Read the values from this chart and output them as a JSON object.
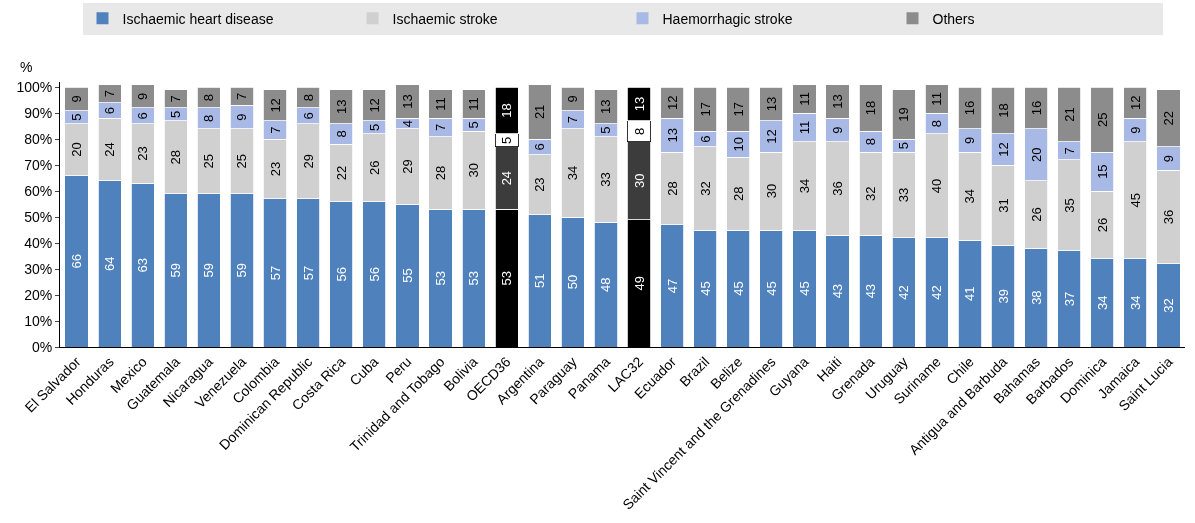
{
  "chart_data": {
    "type": "bar",
    "stacked": true,
    "ylabel": "%",
    "data_labels": true,
    "legend": "top",
    "grid": false,
    "categories": [
      "El Salvador",
      "Honduras",
      "Mexico",
      "Guatemala",
      "Nicaragua",
      "Venezuela",
      "Colombia",
      "Dominican Republic",
      "Costa Rica",
      "Cuba",
      "Peru",
      "Trinidad and Tobago",
      "Bolivia",
      "OECD36",
      "Argentina",
      "Paraguay",
      "Panama",
      "LAC32",
      "Ecuador",
      "Brazil",
      "Belize",
      "Saint Vincent and the Grenadines",
      "Guyana",
      "Haiti",
      "Grenada",
      "Uruguay",
      "Suriname",
      "Chile",
      "Antigua and Barbuda",
      "Bahamas",
      "Barbados",
      "Dominica",
      "Jamaica",
      "Saint Lucia"
    ],
    "ylim": [
      0,
      102
    ],
    "yticks": [
      {
        "value": 0,
        "label": "0%"
      },
      {
        "value": 10,
        "label": "10%"
      },
      {
        "value": 20,
        "label": "20%"
      },
      {
        "value": 30,
        "label": "30%"
      },
      {
        "value": 40,
        "label": "40%"
      },
      {
        "value": 50,
        "label": "50%"
      },
      {
        "value": 60,
        "label": "60%"
      },
      {
        "value": 70,
        "label": "70%"
      },
      {
        "value": 80,
        "label": "80%"
      },
      {
        "value": 90,
        "label": "90%"
      },
      {
        "value": 100,
        "label": "100%"
      }
    ],
    "series": [
      {
        "name": "Ischaemic heart disease",
        "color": "#4f81bd",
        "colors": [
          "#4f81bd",
          "#4f81bd",
          "#4f81bd",
          "#4f81bd",
          "#4f81bd",
          "#4f81bd",
          "#4f81bd",
          "#4f81bd",
          "#4f81bd",
          "#4f81bd",
          "#4f81bd",
          "#4f81bd",
          "#4f81bd",
          "#000000",
          "#4f81bd",
          "#4f81bd",
          "#4f81bd",
          "#000000",
          "#4f81bd",
          "#4f81bd",
          "#4f81bd",
          "#4f81bd",
          "#4f81bd",
          "#4f81bd",
          "#4f81bd",
          "#4f81bd",
          "#4f81bd",
          "#4f81bd",
          "#4f81bd",
          "#4f81bd",
          "#4f81bd",
          "#4f81bd",
          "#4f81bd",
          "#4f81bd"
        ],
        "values": [
          66,
          64,
          63,
          59,
          59,
          59,
          57,
          57,
          56,
          56,
          55,
          53,
          53,
          53,
          51,
          50,
          48,
          49,
          47,
          45,
          45,
          45,
          45,
          43,
          43,
          42,
          42,
          41,
          39,
          38,
          37,
          34,
          34,
          32
        ]
      },
      {
        "name": "Ischaemic stroke",
        "color": "#d0d0d0",
        "colors": [
          "#d0d0d0",
          "#d0d0d0",
          "#d0d0d0",
          "#d0d0d0",
          "#d0d0d0",
          "#d0d0d0",
          "#d0d0d0",
          "#d0d0d0",
          "#d0d0d0",
          "#d0d0d0",
          "#d0d0d0",
          "#d0d0d0",
          "#d0d0d0",
          "#3c3c3c",
          "#d0d0d0",
          "#d0d0d0",
          "#d0d0d0",
          "#3c3c3c",
          "#d0d0d0",
          "#d0d0d0",
          "#d0d0d0",
          "#d0d0d0",
          "#d0d0d0",
          "#d0d0d0",
          "#d0d0d0",
          "#d0d0d0",
          "#d0d0d0",
          "#d0d0d0",
          "#d0d0d0",
          "#d0d0d0",
          "#d0d0d0",
          "#d0d0d0",
          "#d0d0d0",
          "#d0d0d0"
        ],
        "values": [
          20,
          24,
          23,
          28,
          25,
          25,
          23,
          29,
          22,
          26,
          29,
          28,
          30,
          24,
          23,
          34,
          33,
          30,
          28,
          32,
          28,
          30,
          34,
          36,
          32,
          33,
          40,
          34,
          31,
          26,
          35,
          26,
          45,
          36
        ]
      },
      {
        "name": "Haemorrhagic stroke",
        "color": "#a9b9e6",
        "colors": [
          "#a9b9e6",
          "#a9b9e6",
          "#a9b9e6",
          "#a9b9e6",
          "#a9b9e6",
          "#a9b9e6",
          "#a9b9e6",
          "#a9b9e6",
          "#a9b9e6",
          "#a9b9e6",
          "#a9b9e6",
          "#a9b9e6",
          "#a9b9e6",
          "#ffffff",
          "#a9b9e6",
          "#a9b9e6",
          "#a9b9e6",
          "#ffffff",
          "#a9b9e6",
          "#a9b9e6",
          "#a9b9e6",
          "#a9b9e6",
          "#a9b9e6",
          "#a9b9e6",
          "#a9b9e6",
          "#a9b9e6",
          "#a9b9e6",
          "#a9b9e6",
          "#a9b9e6",
          "#a9b9e6",
          "#a9b9e6",
          "#a9b9e6",
          "#a9b9e6",
          "#a9b9e6"
        ],
        "values": [
          5,
          6,
          6,
          5,
          8,
          9,
          7,
          6,
          8,
          5,
          4,
          7,
          5,
          5,
          6,
          7,
          5,
          8,
          13,
          6,
          10,
          12,
          11,
          9,
          8,
          5,
          8,
          9,
          12,
          20,
          7,
          15,
          9,
          9
        ]
      },
      {
        "name": "Others",
        "color": "#8c8c8c",
        "colors": [
          "#8c8c8c",
          "#8c8c8c",
          "#8c8c8c",
          "#8c8c8c",
          "#8c8c8c",
          "#8c8c8c",
          "#8c8c8c",
          "#8c8c8c",
          "#8c8c8c",
          "#8c8c8c",
          "#8c8c8c",
          "#8c8c8c",
          "#8c8c8c",
          "#000000",
          "#8c8c8c",
          "#8c8c8c",
          "#8c8c8c",
          "#000000",
          "#8c8c8c",
          "#8c8c8c",
          "#8c8c8c",
          "#8c8c8c",
          "#8c8c8c",
          "#8c8c8c",
          "#8c8c8c",
          "#8c8c8c",
          "#8c8c8c",
          "#8c8c8c",
          "#8c8c8c",
          "#8c8c8c",
          "#8c8c8c",
          "#8c8c8c",
          "#8c8c8c",
          "#8c8c8c"
        ],
        "values": [
          9,
          7,
          9,
          7,
          8,
          7,
          12,
          8,
          13,
          12,
          13,
          11,
          11,
          18,
          21,
          9,
          13,
          13,
          12,
          17,
          17,
          13,
          11,
          13,
          18,
          19,
          11,
          16,
          18,
          16,
          21,
          25,
          12,
          22
        ]
      }
    ]
  }
}
